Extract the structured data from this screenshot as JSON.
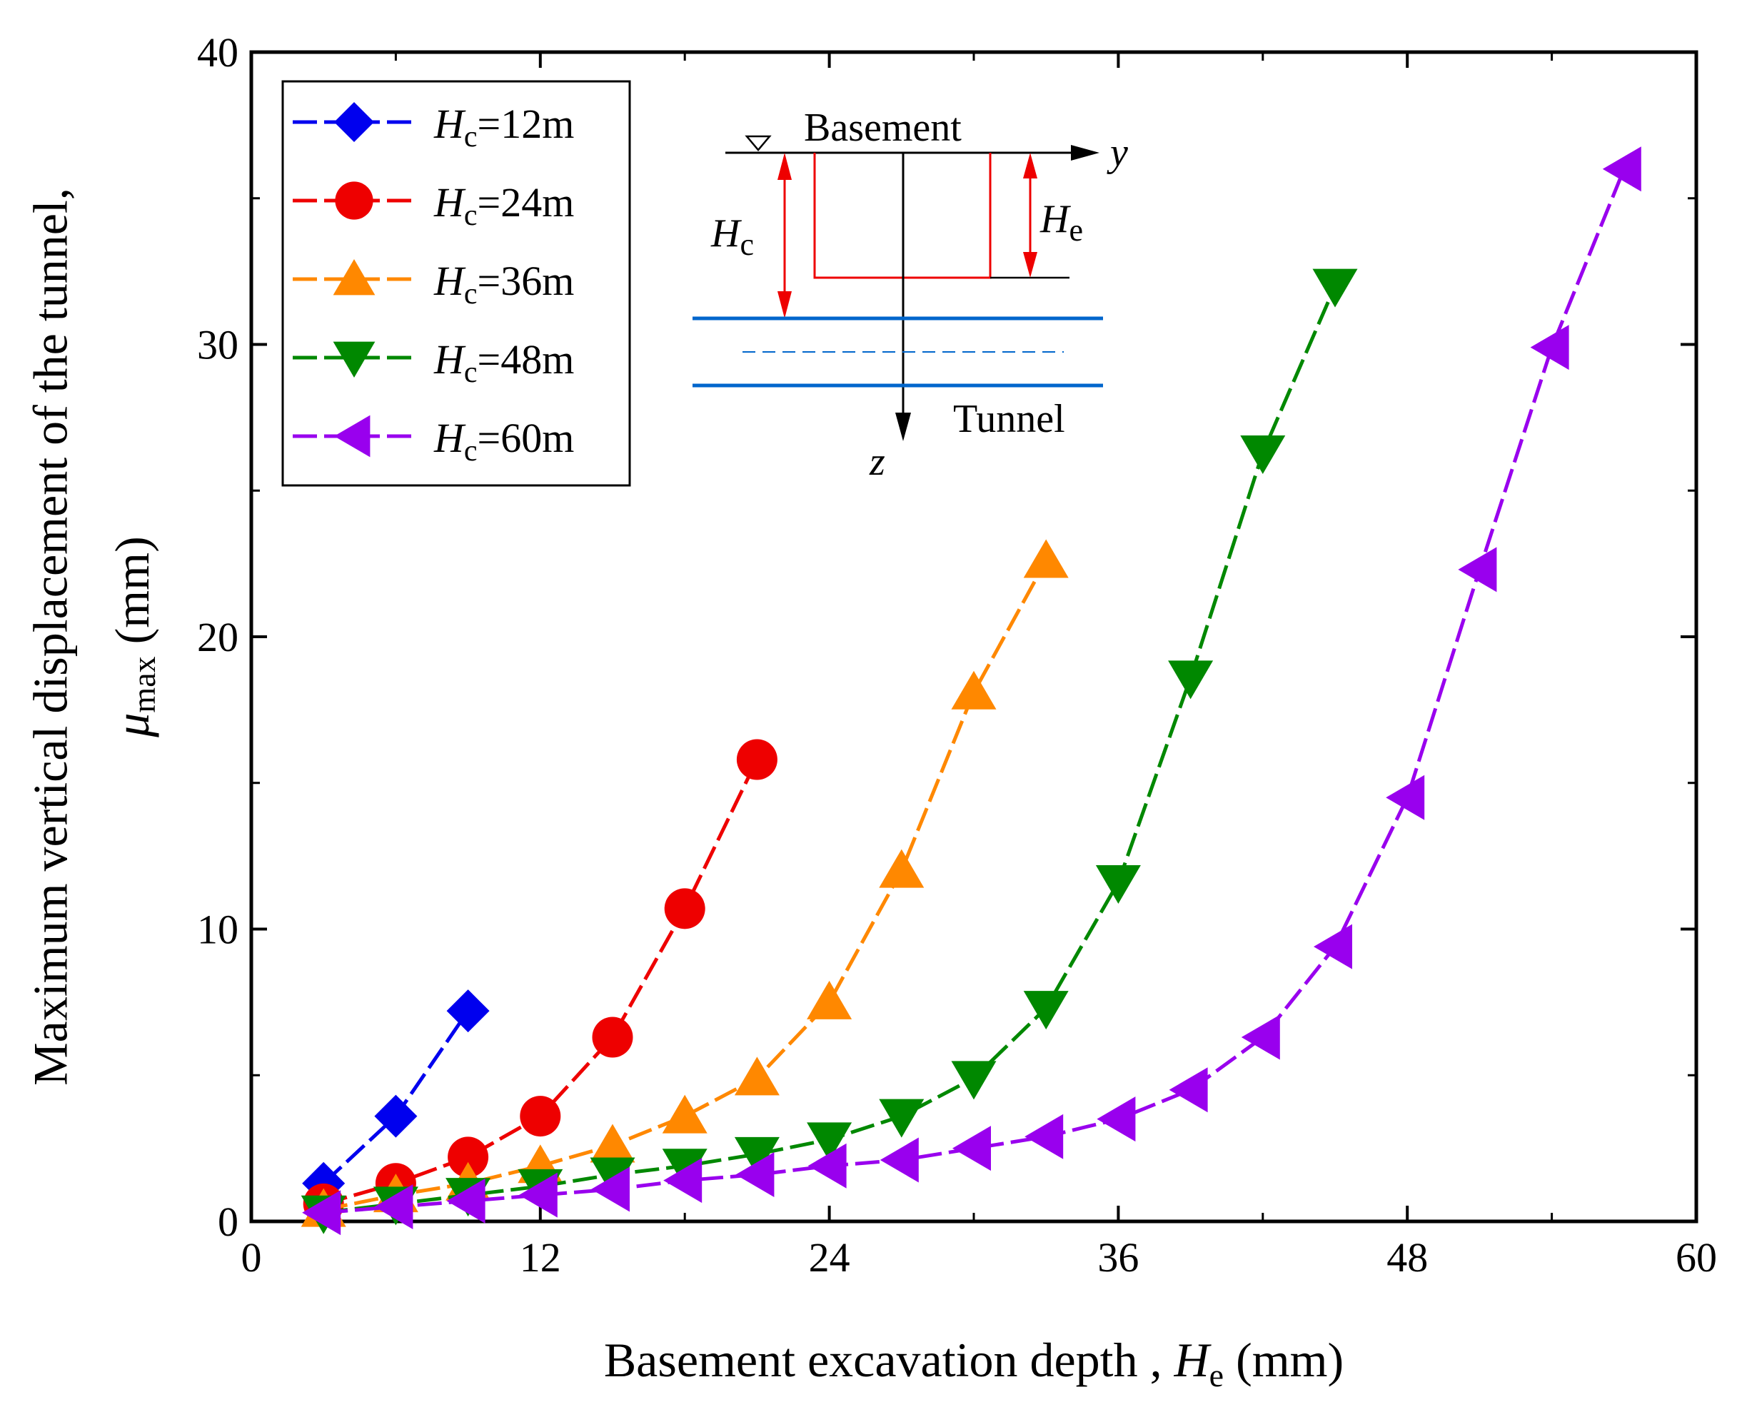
{
  "chart_data": {
    "type": "line",
    "title": "",
    "xlabel": {
      "main": "Basement excavation depth , ",
      "var": "H",
      "sub": "e",
      "unit": " (mm)"
    },
    "ylabel": {
      "line1": "Maximum vertical displacement of the tunnel,",
      "var": "μ",
      "sub": "max",
      "unit": " (mm)"
    },
    "xlim": [
      0,
      60
    ],
    "ylim": [
      0,
      40
    ],
    "xticks": [
      0,
      12,
      24,
      36,
      48,
      60
    ],
    "yticks": [
      0,
      10,
      20,
      30,
      40
    ],
    "legend_position": "top-left",
    "series": [
      {
        "name": "Hc=12m",
        "label_var": "H",
        "label_sub": "c",
        "label_rest": "=12m",
        "color": "#0000ee",
        "marker": "diamond",
        "x": [
          3,
          6,
          9
        ],
        "y": [
          1.3,
          3.6,
          7.2
        ]
      },
      {
        "name": "Hc=24m",
        "label_var": "H",
        "label_sub": "c",
        "label_rest": "=24m",
        "color": "#ee0000",
        "marker": "circle",
        "x": [
          3,
          6,
          9,
          12,
          15,
          18,
          21
        ],
        "y": [
          0.6,
          1.3,
          2.2,
          3.6,
          6.3,
          10.7,
          15.8
        ]
      },
      {
        "name": "Hc=36m",
        "label_var": "H",
        "label_sub": "c",
        "label_rest": "=36m",
        "color": "#ff8800",
        "marker": "triangle-up",
        "x": [
          3,
          6,
          9,
          12,
          15,
          18,
          21,
          24,
          27,
          30,
          33
        ],
        "y": [
          0.4,
          0.9,
          1.3,
          1.9,
          2.6,
          3.6,
          4.9,
          7.5,
          12.0,
          18.1,
          22.6
        ]
      },
      {
        "name": "Hc=48m",
        "label_var": "H",
        "label_sub": "c",
        "label_rest": "=48m",
        "color": "#008800",
        "marker": "triangle-down",
        "x": [
          3,
          6,
          9,
          12,
          15,
          18,
          21,
          24,
          27,
          30,
          33,
          36,
          39,
          42,
          45
        ],
        "y": [
          0.3,
          0.6,
          0.9,
          1.2,
          1.6,
          1.9,
          2.3,
          2.8,
          3.6,
          4.9,
          7.3,
          11.6,
          18.6,
          26.3,
          32.0
        ]
      },
      {
        "name": "Hc=60m",
        "label_var": "H",
        "label_sub": "c",
        "label_rest": "=60m",
        "color": "#9900ee",
        "marker": "triangle-left",
        "x": [
          3,
          6,
          9,
          12,
          15,
          18,
          21,
          24,
          27,
          30,
          33,
          36,
          39,
          42,
          45,
          48,
          51,
          54,
          57
        ],
        "y": [
          0.3,
          0.5,
          0.7,
          0.9,
          1.1,
          1.4,
          1.6,
          1.9,
          2.1,
          2.5,
          2.9,
          3.5,
          4.5,
          6.3,
          9.4,
          14.5,
          22.3,
          29.9,
          36.0
        ]
      }
    ],
    "inset": {
      "basement_label": "Basement",
      "tunnel_label": "Tunnel",
      "y_axis_label": "y",
      "z_axis_label": "z",
      "hc_var": "H",
      "hc_sub": "c",
      "he_var": "H",
      "he_sub": "e",
      "box_color": "#ee0000",
      "tunnel_color": "#0066cc"
    }
  }
}
